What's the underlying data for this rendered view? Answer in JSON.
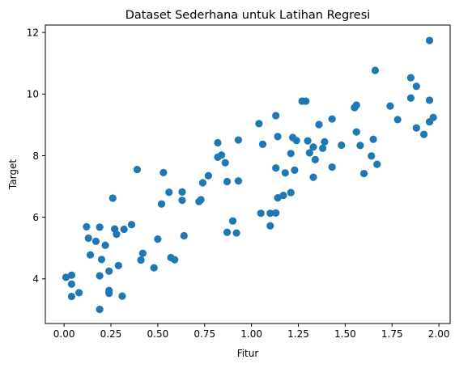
{
  "chart_data": {
    "type": "scatter",
    "title": "Dataset Sederhana untuk Latihan Regresi",
    "xlabel": "Fitur",
    "ylabel": "Target",
    "xlim": [
      -0.1,
      2.06
    ],
    "ylim": [
      2.55,
      12.24
    ],
    "xticks": [
      0.0,
      0.25,
      0.5,
      0.75,
      1.0,
      1.25,
      1.5,
      1.75,
      2.0
    ],
    "xtick_labels": [
      "0.00",
      "0.25",
      "0.50",
      "0.75",
      "1.00",
      "1.25",
      "1.50",
      "1.75",
      "2.00"
    ],
    "yticks": [
      4,
      6,
      8,
      10,
      12
    ],
    "ytick_labels": [
      "4",
      "6",
      "8",
      "10",
      "12"
    ],
    "grid": false,
    "marker_color": "#1f77b4",
    "points": [
      [
        0.01,
        4.05
      ],
      [
        0.04,
        3.83
      ],
      [
        0.04,
        4.12
      ],
      [
        0.04,
        3.43
      ],
      [
        0.08,
        3.55
      ],
      [
        0.12,
        5.69
      ],
      [
        0.13,
        5.32
      ],
      [
        0.14,
        4.78
      ],
      [
        0.17,
        5.22
      ],
      [
        0.19,
        4.1
      ],
      [
        0.19,
        3.01
      ],
      [
        0.19,
        5.68
      ],
      [
        0.2,
        4.63
      ],
      [
        0.22,
        5.09
      ],
      [
        0.24,
        3.62
      ],
      [
        0.24,
        3.53
      ],
      [
        0.24,
        4.25
      ],
      [
        0.26,
        6.62
      ],
      [
        0.27,
        5.62
      ],
      [
        0.28,
        5.45
      ],
      [
        0.29,
        4.43
      ],
      [
        0.31,
        3.44
      ],
      [
        0.32,
        5.61
      ],
      [
        0.36,
        5.76
      ],
      [
        0.39,
        7.55
      ],
      [
        0.41,
        4.61
      ],
      [
        0.42,
        4.83
      ],
      [
        0.48,
        4.36
      ],
      [
        0.5,
        5.29
      ],
      [
        0.52,
        6.43
      ],
      [
        0.53,
        7.45
      ],
      [
        0.56,
        6.81
      ],
      [
        0.57,
        4.69
      ],
      [
        0.59,
        4.62
      ],
      [
        0.63,
        6.55
      ],
      [
        0.63,
        6.82
      ],
      [
        0.64,
        5.4
      ],
      [
        0.72,
        6.51
      ],
      [
        0.73,
        6.57
      ],
      [
        0.74,
        7.12
      ],
      [
        0.77,
        7.35
      ],
      [
        0.82,
        8.42
      ],
      [
        0.82,
        7.95
      ],
      [
        0.84,
        8.02
      ],
      [
        0.86,
        7.77
      ],
      [
        0.87,
        7.16
      ],
      [
        0.87,
        5.51
      ],
      [
        0.9,
        5.88
      ],
      [
        0.92,
        5.49
      ],
      [
        0.93,
        7.18
      ],
      [
        0.93,
        8.51
      ],
      [
        1.04,
        9.04
      ],
      [
        1.05,
        6.13
      ],
      [
        1.06,
        8.37
      ],
      [
        1.1,
        5.72
      ],
      [
        1.1,
        6.13
      ],
      [
        1.13,
        6.14
      ],
      [
        1.13,
        9.3
      ],
      [
        1.13,
        7.6
      ],
      [
        1.14,
        6.63
      ],
      [
        1.14,
        8.62
      ],
      [
        1.17,
        6.71
      ],
      [
        1.18,
        7.44
      ],
      [
        1.21,
        6.8
      ],
      [
        1.21,
        8.07
      ],
      [
        1.22,
        8.59
      ],
      [
        1.23,
        7.53
      ],
      [
        1.24,
        8.49
      ],
      [
        1.27,
        9.77
      ],
      [
        1.29,
        9.77
      ],
      [
        1.3,
        8.48
      ],
      [
        1.31,
        8.09
      ],
      [
        1.33,
        8.28
      ],
      [
        1.33,
        7.3
      ],
      [
        1.34,
        7.87
      ],
      [
        1.36,
        9.01
      ],
      [
        1.38,
        8.24
      ],
      [
        1.39,
        8.45
      ],
      [
        1.43,
        9.19
      ],
      [
        1.43,
        7.63
      ],
      [
        1.48,
        8.34
      ],
      [
        1.55,
        9.56
      ],
      [
        1.56,
        9.64
      ],
      [
        1.56,
        8.77
      ],
      [
        1.58,
        8.33
      ],
      [
        1.6,
        7.42
      ],
      [
        1.64,
        7.99
      ],
      [
        1.65,
        8.53
      ],
      [
        1.66,
        10.77
      ],
      [
        1.67,
        7.72
      ],
      [
        1.74,
        9.61
      ],
      [
        1.78,
        9.17
      ],
      [
        1.85,
        10.53
      ],
      [
        1.85,
        9.87
      ],
      [
        1.88,
        10.25
      ],
      [
        1.88,
        8.9
      ],
      [
        1.92,
        8.69
      ],
      [
        1.95,
        9.1
      ],
      [
        1.95,
        9.8
      ],
      [
        1.95,
        11.74
      ],
      [
        1.97,
        9.24
      ]
    ]
  }
}
